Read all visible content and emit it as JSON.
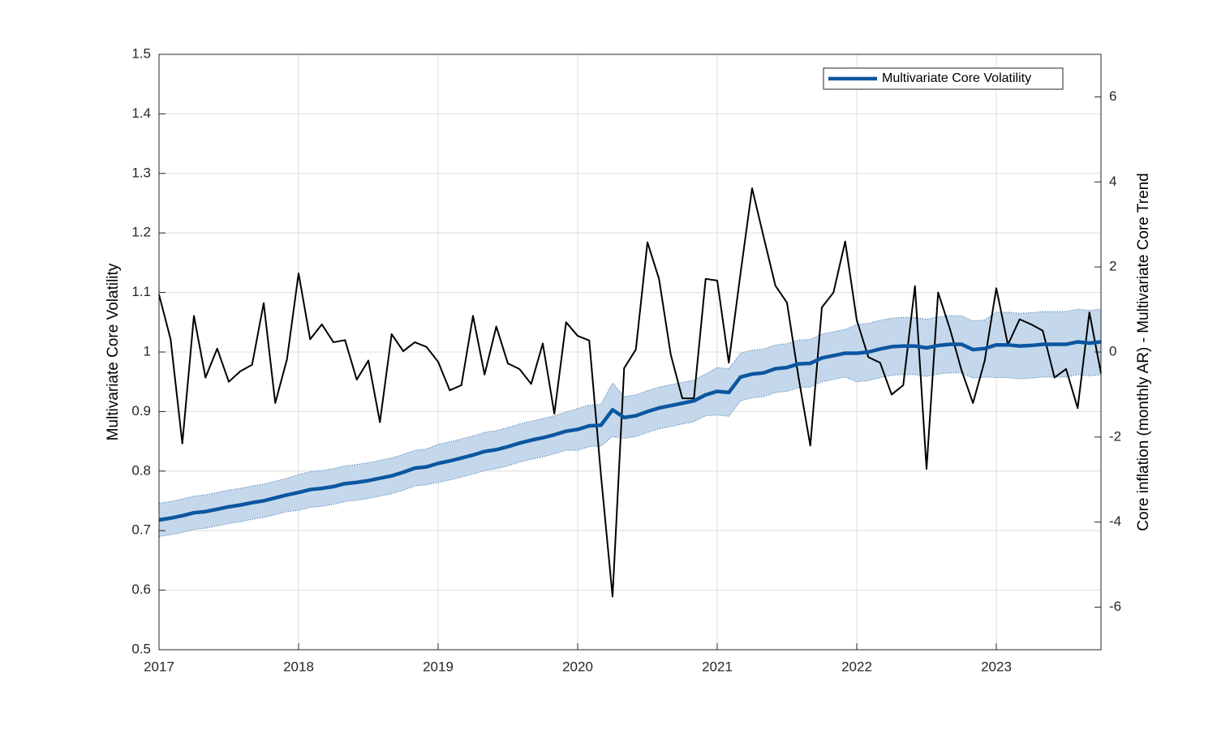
{
  "chart_data": {
    "type": "line",
    "ylabel": "Multivariate Core Volatility",
    "y2label": "Core inflation (monthly AR) - Multivariate Core Trend",
    "xlim": [
      2017,
      2023.75
    ],
    "xticks": [
      2017,
      2018,
      2019,
      2020,
      2021,
      2022,
      2023
    ],
    "ylim": [
      0.5,
      1.5
    ],
    "yticks": [
      0.5,
      0.6,
      0.7,
      0.8,
      0.9,
      1,
      1.1,
      1.2,
      1.3,
      1.4,
      1.5
    ],
    "y2lim": [
      -7,
      7
    ],
    "y2ticks": [
      -6,
      -4,
      -2,
      0,
      2,
      4,
      6
    ],
    "grid": true,
    "legend": "top-right",
    "x": [
      2017,
      2017.083,
      2017.167,
      2017.25,
      2017.333,
      2017.417,
      2017.5,
      2017.583,
      2017.667,
      2017.75,
      2017.833,
      2017.917,
      2018,
      2018.083,
      2018.167,
      2018.25,
      2018.333,
      2018.417,
      2018.5,
      2018.583,
      2018.667,
      2018.75,
      2018.833,
      2018.917,
      2019,
      2019.083,
      2019.167,
      2019.25,
      2019.333,
      2019.417,
      2019.5,
      2019.583,
      2019.667,
      2019.75,
      2019.833,
      2019.917,
      2020,
      2020.083,
      2020.167,
      2020.25,
      2020.333,
      2020.417,
      2020.5,
      2020.583,
      2020.667,
      2020.75,
      2020.833,
      2020.917,
      2021,
      2021.083,
      2021.167,
      2021.25,
      2021.333,
      2021.417,
      2021.5,
      2021.583,
      2021.667,
      2021.75,
      2021.833,
      2021.917,
      2022,
      2022.083,
      2022.167,
      2022.25,
      2022.333,
      2022.417,
      2022.5,
      2022.583,
      2022.667,
      2022.75,
      2022.833,
      2022.917,
      2023,
      2023.083,
      2023.167,
      2023.25,
      2023.333,
      2023.417,
      2023.5,
      2023.583,
      2023.667,
      2023.75
    ],
    "band": {
      "color": "#c5d8eb",
      "edge": "#1f5fa8",
      "upper": [
        0.746,
        0.749,
        0.753,
        0.758,
        0.76,
        0.764,
        0.768,
        0.771,
        0.775,
        0.778,
        0.783,
        0.788,
        0.794,
        0.799,
        0.801,
        0.804,
        0.809,
        0.811,
        0.814,
        0.818,
        0.822,
        0.828,
        0.835,
        0.837,
        0.845,
        0.849,
        0.854,
        0.859,
        0.865,
        0.868,
        0.873,
        0.879,
        0.884,
        0.888,
        0.893,
        0.899,
        0.905,
        0.911,
        0.912,
        0.948,
        0.925,
        0.928,
        0.935,
        0.941,
        0.945,
        0.949,
        0.953,
        0.963,
        0.974,
        0.972,
        0.998,
        1.003,
        1.005,
        1.012,
        1.014,
        1.02,
        1.021,
        1.03,
        1.034,
        1.038,
        1.046,
        1.048,
        1.053,
        1.057,
        1.058,
        1.058,
        1.055,
        1.059,
        1.061,
        1.061,
        1.052,
        1.054,
        1.067,
        1.067,
        1.065,
        1.066,
        1.068,
        1.068,
        1.068,
        1.072,
        1.07,
        1.072
      ],
      "lower": [
        0.69,
        0.693,
        0.697,
        0.702,
        0.704,
        0.708,
        0.712,
        0.715,
        0.719,
        0.722,
        0.727,
        0.732,
        0.734,
        0.739,
        0.741,
        0.744,
        0.749,
        0.751,
        0.754,
        0.758,
        0.762,
        0.768,
        0.775,
        0.777,
        0.781,
        0.785,
        0.79,
        0.795,
        0.801,
        0.804,
        0.809,
        0.815,
        0.82,
        0.824,
        0.829,
        0.835,
        0.835,
        0.841,
        0.842,
        0.858,
        0.855,
        0.858,
        0.865,
        0.871,
        0.875,
        0.879,
        0.883,
        0.893,
        0.894,
        0.892,
        0.918,
        0.923,
        0.925,
        0.932,
        0.934,
        0.94,
        0.941,
        0.95,
        0.954,
        0.958,
        0.95,
        0.952,
        0.957,
        0.961,
        0.962,
        0.962,
        0.959,
        0.963,
        0.965,
        0.965,
        0.956,
        0.958,
        0.957,
        0.957,
        0.955,
        0.956,
        0.958,
        0.958,
        0.958,
        0.962,
        0.96,
        0.962
      ]
    },
    "series": [
      {
        "name": "Multivariate Core Volatility",
        "color": "#0b56a0",
        "values": [
          0.718,
          0.721,
          0.725,
          0.73,
          0.732,
          0.736,
          0.74,
          0.743,
          0.747,
          0.75,
          0.755,
          0.76,
          0.764,
          0.769,
          0.771,
          0.774,
          0.779,
          0.781,
          0.784,
          0.788,
          0.792,
          0.798,
          0.805,
          0.807,
          0.813,
          0.817,
          0.822,
          0.827,
          0.833,
          0.836,
          0.841,
          0.847,
          0.852,
          0.856,
          0.861,
          0.867,
          0.87,
          0.876,
          0.877,
          0.903,
          0.89,
          0.893,
          0.9,
          0.906,
          0.91,
          0.914,
          0.918,
          0.928,
          0.934,
          0.932,
          0.958,
          0.963,
          0.965,
          0.972,
          0.974,
          0.98,
          0.981,
          0.99,
          0.994,
          0.998,
          0.998,
          1,
          1.005,
          1.009,
          1.01,
          1.01,
          1.007,
          1.011,
          1.013,
          1.013,
          1.004,
          1.006,
          1.012,
          1.012,
          1.01,
          1.011,
          1.013,
          1.013,
          1.013,
          1.017,
          1.015,
          1.017
        ]
      },
      {
        "color": "#000000",
        "axis": "y2",
        "values": [
          1.35,
          0.3,
          -2.15,
          0.85,
          -0.6,
          0.08,
          -0.7,
          -0.45,
          -0.3,
          1.15,
          -1.2,
          -0.17,
          1.85,
          0.3,
          0.65,
          0.23,
          0.28,
          -0.65,
          -0.2,
          -1.65,
          0.42,
          0.02,
          0.23,
          0.12,
          -0.23,
          -0.9,
          -0.78,
          0.85,
          -0.53,
          0.6,
          -0.27,
          -0.4,
          -0.75,
          0.2,
          -1.45,
          0.7,
          0.38,
          0.27,
          -2.9,
          -5.75,
          -0.38,
          0.06,
          2.58,
          1.72,
          -0.06,
          -1.09,
          -1.09,
          1.72,
          1.68,
          -0.25,
          1.85,
          3.85,
          2.7,
          1.56,
          1.16,
          -0.6,
          -2.2,
          1.05,
          1.4,
          2.6,
          0.75,
          -0.12,
          -0.25,
          -1,
          -0.78,
          1.55,
          -2.75,
          1.4,
          0.55,
          -0.42,
          -1.2,
          -0.2,
          1.5,
          0.17,
          0.77,
          0.65,
          0.5,
          -0.6,
          -0.4,
          -1.32,
          0.93,
          -0.5
        ]
      }
    ]
  }
}
